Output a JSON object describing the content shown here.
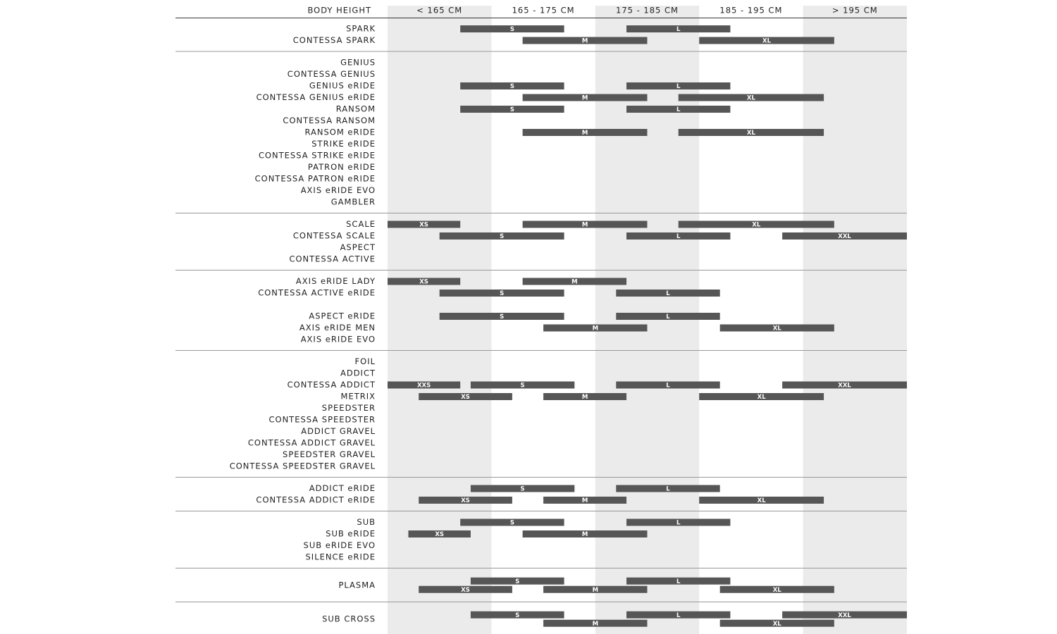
{
  "chart_data": {
    "type": "range-bar",
    "header": "BODY HEIGHT",
    "columns": [
      "< 165 CM",
      "165 - 175 CM",
      "175 - 185 CM",
      "185 - 195 CM",
      "> 195 CM"
    ],
    "xlim": [
      155,
      205
    ],
    "groups": [
      {
        "rows": [
          {
            "name": "SPARK",
            "lines": [
              [
                {
                  "size": "S",
                  "from": 162,
                  "to": 172
                },
                {
                  "size": "L",
                  "from": 178,
                  "to": 188
                }
              ]
            ]
          },
          {
            "name": "CONTESSA SPARK",
            "lines": [
              [
                {
                  "size": "M",
                  "from": 168,
                  "to": 180
                },
                {
                  "size": "XL",
                  "from": 185,
                  "to": 198
                }
              ]
            ]
          }
        ]
      },
      {
        "rows": [
          {
            "name": "GENIUS"
          },
          {
            "name": "CONTESSA GENIUS"
          },
          {
            "name": "GENIUS eRIDE",
            "lines": [
              [
                {
                  "size": "S",
                  "from": 162,
                  "to": 172
                },
                {
                  "size": "L",
                  "from": 178,
                  "to": 188
                }
              ]
            ]
          },
          {
            "name": "CONTESSA GENIUS eRIDE",
            "lines": [
              [
                {
                  "size": "M",
                  "from": 168,
                  "to": 180
                },
                {
                  "size": "XL",
                  "from": 183,
                  "to": 197
                }
              ]
            ]
          },
          {
            "name": "RANSOM",
            "lines": [
              [
                {
                  "size": "S",
                  "from": 162,
                  "to": 172
                },
                {
                  "size": "L",
                  "from": 178,
                  "to": 188
                }
              ]
            ]
          },
          {
            "name": "CONTESSA RANSOM"
          },
          {
            "name": "RANSOM eRIDE",
            "lines": [
              [
                {
                  "size": "M",
                  "from": 168,
                  "to": 180
                },
                {
                  "size": "XL",
                  "from": 183,
                  "to": 197
                }
              ]
            ]
          },
          {
            "name": "STRIKE eRIDE"
          },
          {
            "name": "CONTESSA STRIKE eRIDE"
          },
          {
            "name": "PATRON eRIDE"
          },
          {
            "name": "CONTESSA PATRON eRIDE"
          },
          {
            "name": "AXIS eRIDE EVO"
          },
          {
            "name": "GAMBLER"
          }
        ]
      },
      {
        "rows": [
          {
            "name": "SCALE",
            "lines": [
              [
                {
                  "size": "XS",
                  "from": 155,
                  "to": 162
                },
                {
                  "size": "M",
                  "from": 168,
                  "to": 180
                },
                {
                  "size": "XL",
                  "from": 183,
                  "to": 198
                }
              ]
            ]
          },
          {
            "name": "CONTESSA SCALE",
            "lines": [
              [
                {
                  "size": "S",
                  "from": 160,
                  "to": 172
                },
                {
                  "size": "L",
                  "from": 178,
                  "to": 188
                },
                {
                  "size": "XXL",
                  "from": 193,
                  "to": 205
                }
              ]
            ]
          },
          {
            "name": "ASPECT"
          },
          {
            "name": "CONTESSA ACTIVE"
          }
        ]
      },
      {
        "rows": [
          {
            "name": "AXIS eRIDE LADY",
            "lines": [
              [
                {
                  "size": "XS",
                  "from": 155,
                  "to": 162
                },
                {
                  "size": "M",
                  "from": 168,
                  "to": 178
                }
              ]
            ]
          },
          {
            "name": "CONTESSA ACTIVE eRIDE",
            "lines": [
              [
                {
                  "size": "S",
                  "from": 160,
                  "to": 172
                },
                {
                  "size": "L",
                  "from": 177,
                  "to": 187
                }
              ]
            ]
          },
          {
            "name": null
          },
          {
            "name": "ASPECT eRIDE",
            "lines": [
              [
                {
                  "size": "S",
                  "from": 160,
                  "to": 172
                },
                {
                  "size": "L",
                  "from": 177,
                  "to": 187
                }
              ]
            ]
          },
          {
            "name": "AXIS eRIDE MEN",
            "lines": [
              [
                {
                  "size": "M",
                  "from": 170,
                  "to": 180
                },
                {
                  "size": "XL",
                  "from": 187,
                  "to": 198
                }
              ]
            ]
          },
          {
            "name": "AXIS eRIDE EVO"
          }
        ]
      },
      {
        "rows": [
          {
            "name": "FOIL"
          },
          {
            "name": "ADDICT"
          },
          {
            "name": "CONTESSA ADDICT",
            "lines": [
              [
                {
                  "size": "XXS",
                  "from": 155,
                  "to": 162
                },
                {
                  "size": "S",
                  "from": 163,
                  "to": 173
                },
                {
                  "size": "L",
                  "from": 177,
                  "to": 187
                },
                {
                  "size": "XXL",
                  "from": 193,
                  "to": 205
                }
              ]
            ]
          },
          {
            "name": "METRIX",
            "lines": [
              [
                {
                  "size": "XS",
                  "from": 158,
                  "to": 167
                },
                {
                  "size": "M",
                  "from": 170,
                  "to": 178
                },
                {
                  "size": "XL",
                  "from": 185,
                  "to": 197
                }
              ]
            ]
          },
          {
            "name": "SPEEDSTER"
          },
          {
            "name": "CONTESSA SPEEDSTER"
          },
          {
            "name": "ADDICT GRAVEL"
          },
          {
            "name": "CONTESSA ADDICT GRAVEL"
          },
          {
            "name": "SPEEDSTER GRAVEL"
          },
          {
            "name": "CONTESSA SPEEDSTER GRAVEL"
          }
        ]
      },
      {
        "rows": [
          {
            "name": "ADDICT eRIDE",
            "lines": [
              [
                {
                  "size": "S",
                  "from": 163,
                  "to": 173
                },
                {
                  "size": "L",
                  "from": 177,
                  "to": 187
                }
              ]
            ]
          },
          {
            "name": "CONTESSA ADDICT eRIDE",
            "lines": [
              [
                {
                  "size": "XS",
                  "from": 158,
                  "to": 167
                },
                {
                  "size": "M",
                  "from": 170,
                  "to": 178
                },
                {
                  "size": "XL",
                  "from": 185,
                  "to": 197
                }
              ]
            ]
          }
        ]
      },
      {
        "rows": [
          {
            "name": "SUB",
            "lines": [
              [
                {
                  "size": "S",
                  "from": 162,
                  "to": 172
                },
                {
                  "size": "L",
                  "from": 178,
                  "to": 188
                }
              ]
            ]
          },
          {
            "name": "SUB eRIDE",
            "lines": [
              [
                {
                  "size": "XS",
                  "from": 157,
                  "to": 163
                },
                {
                  "size": "M",
                  "from": 168,
                  "to": 180
                }
              ]
            ]
          },
          {
            "name": "SUB eRIDE EVO"
          },
          {
            "name": "SILENCE eRIDE"
          }
        ]
      },
      {
        "rows": [
          {
            "name": "PLASMA",
            "lines": [
              [
                {
                  "size": "S",
                  "from": 163,
                  "to": 172
                },
                {
                  "size": "L",
                  "from": 178,
                  "to": 188
                }
              ],
              [
                {
                  "size": "XS",
                  "from": 158,
                  "to": 167
                },
                {
                  "size": "M",
                  "from": 170,
                  "to": 180
                },
                {
                  "size": "XL",
                  "from": 187,
                  "to": 198
                }
              ]
            ]
          }
        ]
      },
      {
        "rows": [
          {
            "name": "SUB CROSS",
            "lines": [
              [
                {
                  "size": "S",
                  "from": 163,
                  "to": 172
                },
                {
                  "size": "L",
                  "from": 178,
                  "to": 188
                },
                {
                  "size": "XXL",
                  "from": 193,
                  "to": 205
                }
              ],
              [
                {
                  "size": "M",
                  "from": 170,
                  "to": 180
                },
                {
                  "size": "XL",
                  "from": 187,
                  "to": 198
                }
              ]
            ]
          }
        ]
      }
    ]
  }
}
